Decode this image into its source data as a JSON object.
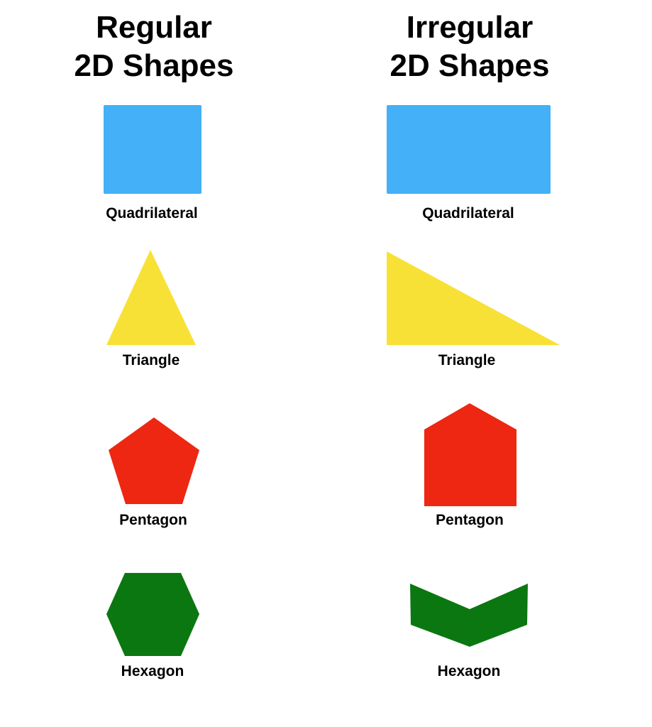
{
  "columns": {
    "regular": {
      "title_line1": "Regular",
      "title_line2": "2D Shapes",
      "shapes": [
        {
          "label": "Quadrilateral",
          "color": "#43B0F7",
          "shape_name": "square"
        },
        {
          "label": "Triangle",
          "color": "#F8E136",
          "shape_name": "equilateral-triangle"
        },
        {
          "label": "Pentagon",
          "color": "#EE2712",
          "shape_name": "regular-pentagon"
        },
        {
          "label": "Hexagon",
          "color": "#0B7710",
          "shape_name": "regular-hexagon"
        }
      ]
    },
    "irregular": {
      "title_line1": "Irregular",
      "title_line2": "2D Shapes",
      "shapes": [
        {
          "label": "Quadrilateral",
          "color": "#43B0F7",
          "shape_name": "rectangle"
        },
        {
          "label": "Triangle",
          "color": "#F8E136",
          "shape_name": "right-triangle"
        },
        {
          "label": "Pentagon",
          "color": "#EE2712",
          "shape_name": "house-pentagon"
        },
        {
          "label": "Hexagon",
          "color": "#0B7710",
          "shape_name": "chevron-hexagon"
        }
      ]
    }
  }
}
